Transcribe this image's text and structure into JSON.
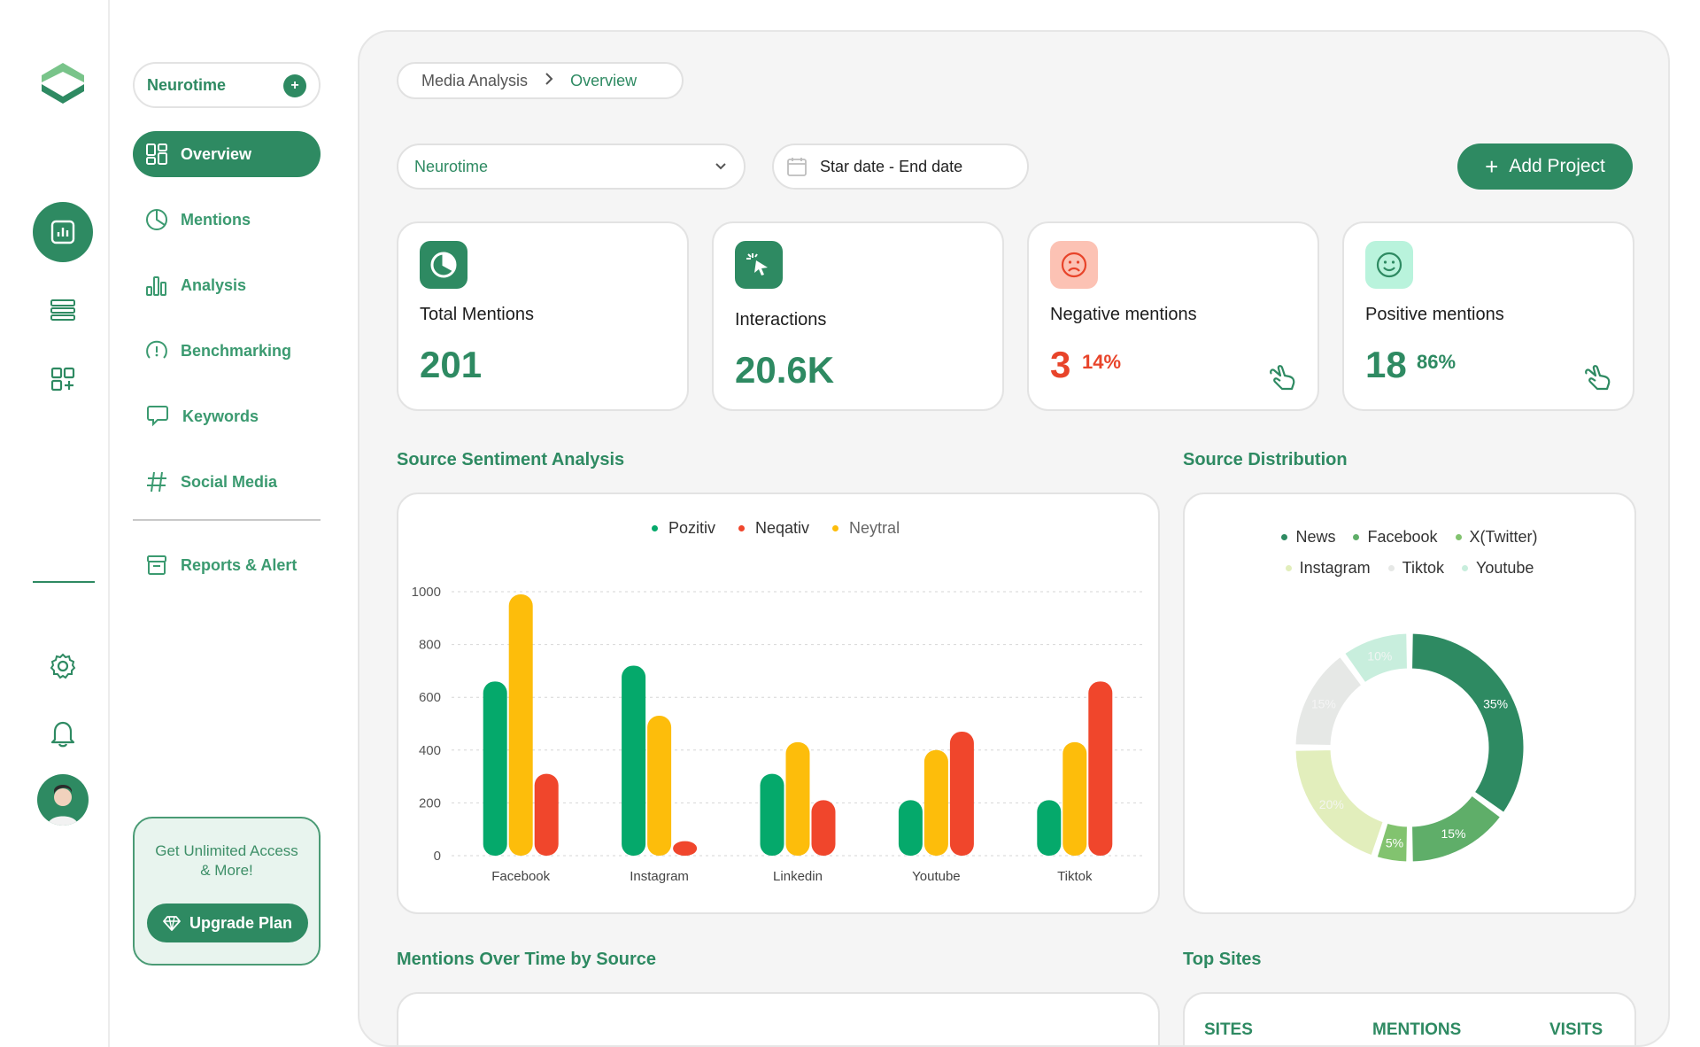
{
  "sidebar": {
    "workspace": "Neurotime",
    "items": [
      {
        "label": "Overview"
      },
      {
        "label": "Mentions"
      },
      {
        "label": "Analysis"
      },
      {
        "label": "Benchmarking"
      },
      {
        "label": "Keywords"
      },
      {
        "label": "Social Media"
      },
      {
        "label": "Reports & Alert"
      }
    ],
    "upgrade": {
      "text1": "Get Unlimited Access",
      "text2": "& More!",
      "button": "Upgrade Plan"
    }
  },
  "header": {
    "breadcrumb": [
      "Media Analysis",
      "Overview"
    ],
    "project_select": "Neurotime",
    "date_start": "Star date -",
    "date_end": "End date",
    "add_button": "Add Project"
  },
  "stats": [
    {
      "label": "Total Mentions",
      "value": "201"
    },
    {
      "label": "Interactions",
      "value": "20.6K"
    },
    {
      "label": "Negative mentions",
      "value": "3",
      "pct": "14%"
    },
    {
      "label": "Positive mentions",
      "value": "18",
      "pct": "86%"
    }
  ],
  "sections": {
    "sentiment": "Source Sentiment Analysis",
    "distribution": "Source Distribution",
    "over_time": "Mentions Over Time by Source",
    "top_sites": "Top Sites"
  },
  "top_sites_columns": [
    "SITES",
    "MENTIONS",
    "VISITS"
  ],
  "colors": {
    "accent": "#2e8a62",
    "positive": "#05a96b",
    "negative": "#f0462c",
    "neutral": "#fdbd0b"
  },
  "chart_data": [
    {
      "type": "bar",
      "categories": [
        "Facebook",
        "Instagram",
        "Linkedin",
        "Youtube",
        "Tiktok"
      ],
      "series": [
        {
          "name": "Pozitiv",
          "values": [
            660,
            720,
            310,
            210,
            210
          ]
        },
        {
          "name": "Neqativ",
          "values": [
            310,
            55,
            210,
            470,
            660
          ]
        },
        {
          "name": "Neytral",
          "values": [
            990,
            530,
            430,
            400,
            430
          ]
        }
      ],
      "ylim": [
        0,
        1000
      ],
      "yticks": [
        "0",
        "200",
        "400",
        "600",
        "800",
        "1000"
      ],
      "legend": "top-center",
      "grid": true
    },
    {
      "type": "pie",
      "labels": [
        "News",
        "Facebook",
        "X(Twitter)",
        "Instagram",
        "Tiktok",
        "Youtube"
      ],
      "values": [
        35,
        15,
        5,
        20,
        15,
        10
      ],
      "slice_labels": [
        "35%",
        "15%",
        "5%",
        "20%",
        "15%",
        "10%"
      ],
      "colors": [
        "#2e8a62",
        "#5fae69",
        "#82c36f",
        "#e2eebc",
        "#e6e8e6",
        "#c8eedd"
      ],
      "legend": "top"
    }
  ]
}
